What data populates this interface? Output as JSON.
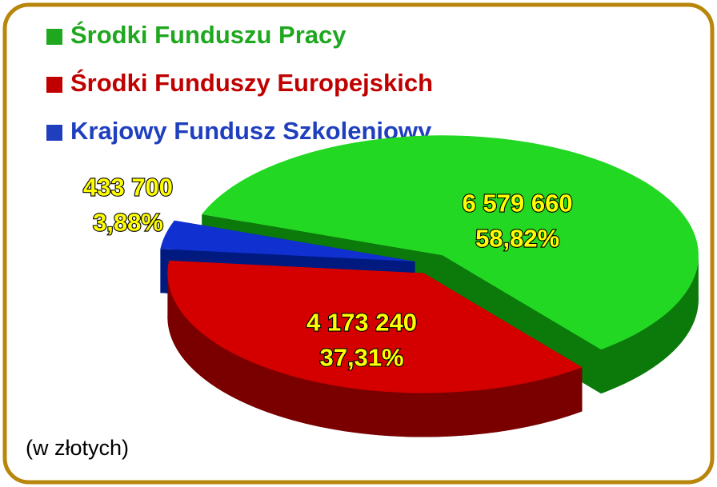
{
  "chart_data": {
    "type": "pie",
    "categories": [
      "Środki Funduszu Pracy",
      "Środki Funduszy Europejskich",
      "Krajowy Fundusz Szkoleniowy"
    ],
    "values": [
      6579660,
      4173240,
      433700
    ],
    "value_labels": [
      "6 579 660",
      "4 173 240",
      "433 700"
    ],
    "percents": [
      58.82,
      37.31,
      3.88
    ],
    "percent_labels": [
      "58,82%",
      "37,31%",
      "3,88%"
    ],
    "colors": [
      "#22d822",
      "#d40000",
      "#1030d0"
    ],
    "side_colors": [
      "#0b7a0b",
      "#7a0000",
      "#001a80"
    ],
    "legend_colors": [
      "#1fa81f",
      "#c00000",
      "#1f3fbf"
    ],
    "annotation": "(w złotych)"
  }
}
